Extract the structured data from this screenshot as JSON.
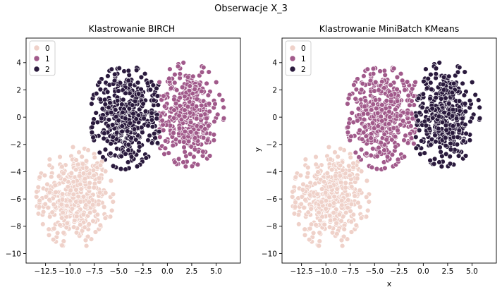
{
  "figure": {
    "suptitle": "Obserwacje X_3"
  },
  "palette": {
    "0": "#efd1c9",
    "1": "#a15a8b",
    "2": "#2a1a3d",
    "edge": "#ffffff"
  },
  "chart_data": [
    {
      "type": "scatter",
      "title": "Klastrowanie BIRCH",
      "xlabel": "",
      "ylabel": "",
      "xlim": [
        -14.5,
        7.5
      ],
      "ylim": [
        -10.7,
        5.8
      ],
      "xticks": [
        -12.5,
        -10.0,
        -7.5,
        -5.0,
        -2.5,
        0.0,
        2.5,
        5.0
      ],
      "xtick_labels": [
        "−12.5",
        "−10.0",
        "−7.5",
        "−5.0",
        "−2.5",
        "0.0",
        "2.5",
        "5.0"
      ],
      "yticks": [
        -10,
        -8,
        -6,
        -4,
        -2,
        0,
        2,
        4
      ],
      "ytick_labels": [
        "−10",
        "−8",
        "−6",
        "−4",
        "−2",
        "0",
        "2",
        "4"
      ],
      "legend": {
        "position": "upper-left",
        "entries": [
          "0",
          "1",
          "2"
        ]
      },
      "series": [
        {
          "name": "0",
          "center": [
            -9.5,
            -5.9
          ],
          "spread": [
            2.1,
            2.0
          ],
          "region": "cluster bottom-left, x from -13.8 to -6.5, y from -9.8 to -1.5"
        },
        {
          "name": "1",
          "center": [
            2.1,
            0.2
          ],
          "spread": [
            2.1,
            2.1
          ],
          "region": "cluster right, x from -1.0 to 6.4, y from -4.2 to 5.1"
        },
        {
          "name": "2",
          "center": [
            -4.3,
            0.0
          ],
          "spread": [
            2.0,
            2.1
          ],
          "region": "cluster middle, x from -8.2 to -0.8, y from -4.3 to 4.8"
        }
      ]
    },
    {
      "type": "scatter",
      "title": "Klastrowanie MiniBatch KMeans",
      "xlabel": "x",
      "ylabel": "y",
      "xlim": [
        -14.5,
        7.5
      ],
      "ylim": [
        -10.7,
        5.8
      ],
      "xticks": [
        -12.5,
        -10.0,
        -7.5,
        -5.0,
        -2.5,
        0.0,
        2.5,
        5.0
      ],
      "xtick_labels": [
        "−12.5",
        "−10.0",
        "−7.5",
        "−5.0",
        "−2.5",
        "0.0",
        "2.5",
        "5.0"
      ],
      "yticks": [
        -10,
        -8,
        -6,
        -4,
        -2,
        0,
        2,
        4
      ],
      "ytick_labels": [
        "−10",
        "−8",
        "−6",
        "−4",
        "−2",
        "0",
        "2",
        "4"
      ],
      "legend": {
        "position": "upper-left",
        "entries": [
          "0",
          "1",
          "2"
        ]
      },
      "series": [
        {
          "name": "0",
          "center": [
            -9.5,
            -5.9
          ],
          "spread": [
            2.1,
            2.0
          ],
          "region": "cluster bottom-left, x from -13.8 to -5.5, y from -9.8 to -1.0"
        },
        {
          "name": "1",
          "center": [
            -4.3,
            0.0
          ],
          "spread": [
            2.0,
            2.1
          ],
          "region": "cluster middle, x from -8.2 to -0.6, y from -4.3 to 4.8"
        },
        {
          "name": "2",
          "center": [
            2.1,
            0.2
          ],
          "spread": [
            2.1,
            2.1
          ],
          "region": "cluster right, x from -0.9 to 6.4, y from -4.2 to 5.1"
        }
      ]
    }
  ]
}
